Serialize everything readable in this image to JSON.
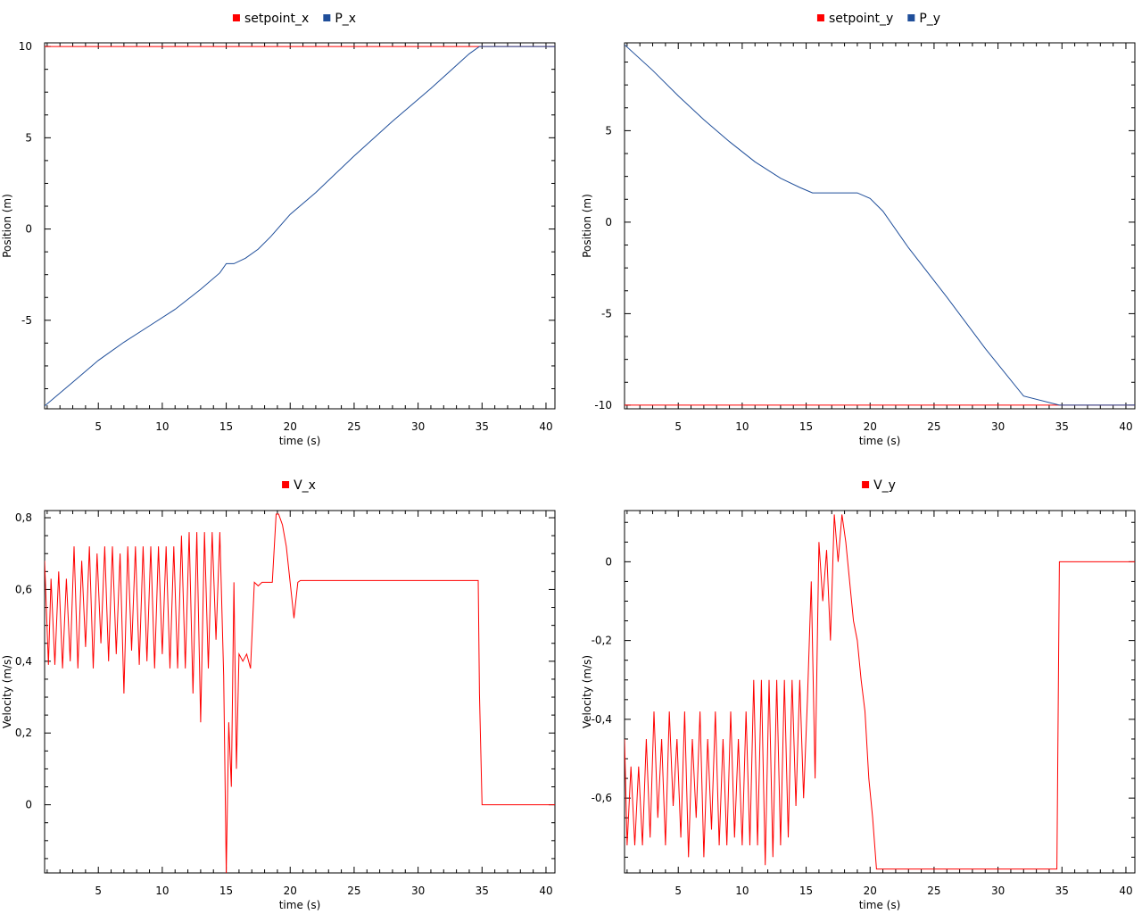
{
  "colors": {
    "red": "#ff0000",
    "blue": "#1f4e9a",
    "axis": "#000000"
  },
  "chart_data": [
    {
      "type": "line",
      "xlabel": "time (s)",
      "ylabel": "Position (m)",
      "xlim": [
        0.8,
        40.7
      ],
      "ylim": [
        -9.85,
        10.2
      ],
      "xticks": [
        5,
        10,
        15,
        20,
        25,
        30,
        35,
        40
      ],
      "yticks": [
        10,
        5,
        0,
        -5
      ],
      "ytick_labels": [
        "10",
        "5",
        "0",
        "-5"
      ],
      "grid": false,
      "legend": "top-center",
      "series": [
        {
          "name": "setpoint_x",
          "color": "#ff0000",
          "x": [
            0.8,
            40.7
          ],
          "y": [
            10,
            10
          ]
        },
        {
          "name": "P_x",
          "color": "#1f4e9a",
          "x": [
            0.8,
            3,
            5,
            7,
            9,
            11,
            13,
            14.5,
            15,
            15.6,
            16.5,
            17.5,
            18.5,
            20,
            22,
            25,
            28,
            31,
            34,
            34.8,
            40.7
          ],
          "y": [
            -9.7,
            -8.4,
            -7.2,
            -6.2,
            -5.3,
            -4.4,
            -3.3,
            -2.4,
            -1.9,
            -1.9,
            -1.6,
            -1.1,
            -0.4,
            0.8,
            2.0,
            4.0,
            5.9,
            7.7,
            9.6,
            10,
            10
          ]
        }
      ]
    },
    {
      "type": "line",
      "xlabel": "time (s)",
      "ylabel": "Position (m)",
      "xlim": [
        0.8,
        40.7
      ],
      "ylim": [
        -10.2,
        9.8
      ],
      "xticks": [
        5,
        10,
        15,
        20,
        25,
        30,
        35,
        40
      ],
      "yticks": [
        5,
        0,
        -5,
        -10
      ],
      "ytick_labels": [
        "5",
        "0",
        "-5",
        "-10"
      ],
      "grid": false,
      "legend": "top-center",
      "series": [
        {
          "name": "setpoint_y",
          "color": "#ff0000",
          "x": [
            0.8,
            40.7
          ],
          "y": [
            -10,
            -10
          ]
        },
        {
          "name": "P_y",
          "color": "#1f4e9a",
          "x": [
            0.8,
            3,
            5,
            7,
            9,
            11,
            13,
            14.5,
            15.5,
            16.5,
            18,
            19,
            20,
            21,
            23,
            26,
            29,
            32,
            34.8,
            40.7
          ],
          "y": [
            9.7,
            8.3,
            6.9,
            5.6,
            4.4,
            3.3,
            2.4,
            1.9,
            1.6,
            1.6,
            1.6,
            1.6,
            1.3,
            0.6,
            -1.4,
            -4.1,
            -6.9,
            -9.5,
            -10,
            -10
          ]
        }
      ]
    },
    {
      "type": "line",
      "xlabel": "time (s)",
      "ylabel": "Velocity (m/s)",
      "xlim": [
        0.8,
        40.7
      ],
      "ylim": [
        -0.19,
        0.82
      ],
      "xticks": [
        5,
        10,
        15,
        20,
        25,
        30,
        35,
        40
      ],
      "yticks": [
        0.8,
        0.6,
        0.4,
        0.2,
        0
      ],
      "ytick_labels": [
        "0,8",
        "0,6",
        "0,4",
        "0,2",
        "0"
      ],
      "grid": false,
      "legend": "top-center",
      "series": [
        {
          "name": "V_x",
          "color": "#ff0000",
          "x": [
            0.8,
            1.1,
            1.3,
            1.6,
            1.9,
            2.2,
            2.5,
            2.8,
            3.1,
            3.4,
            3.7,
            4.0,
            4.3,
            4.6,
            4.9,
            5.2,
            5.5,
            5.8,
            6.1,
            6.4,
            6.7,
            7.0,
            7.3,
            7.6,
            7.9,
            8.2,
            8.5,
            8.8,
            9.1,
            9.4,
            9.7,
            10.0,
            10.3,
            10.6,
            10.9,
            11.2,
            11.5,
            11.8,
            12.1,
            12.4,
            12.7,
            13.0,
            13.3,
            13.6,
            13.9,
            14.2,
            14.5,
            14.8,
            15.0,
            15.2,
            15.4,
            15.6,
            15.8,
            16.0,
            16.3,
            16.6,
            16.9,
            17.2,
            17.5,
            17.8,
            18.2,
            18.6,
            18.9,
            19.1,
            19.4,
            19.7,
            20.0,
            20.3,
            20.6,
            20.8,
            34.7,
            34.8,
            35.0,
            40.7
          ],
          "y": [
            0.68,
            0.39,
            0.63,
            0.39,
            0.65,
            0.38,
            0.63,
            0.4,
            0.72,
            0.38,
            0.68,
            0.44,
            0.72,
            0.38,
            0.7,
            0.45,
            0.72,
            0.4,
            0.72,
            0.42,
            0.7,
            0.31,
            0.72,
            0.43,
            0.72,
            0.39,
            0.72,
            0.4,
            0.72,
            0.38,
            0.72,
            0.42,
            0.72,
            0.38,
            0.72,
            0.38,
            0.75,
            0.38,
            0.76,
            0.31,
            0.76,
            0.23,
            0.76,
            0.38,
            0.76,
            0.46,
            0.76,
            0.36,
            -0.19,
            0.23,
            0.05,
            0.62,
            0.1,
            0.42,
            0.4,
            0.42,
            0.38,
            0.62,
            0.61,
            0.62,
            0.62,
            0.62,
            0.81,
            0.81,
            0.78,
            0.72,
            0.62,
            0.52,
            0.62,
            0.625,
            0.625,
            0.31,
            0.0,
            0.0
          ]
        }
      ]
    },
    {
      "type": "line",
      "xlabel": "time (s)",
      "ylabel": "Velocity (m/s)",
      "xlim": [
        0.8,
        40.7
      ],
      "ylim": [
        -0.79,
        0.13
      ],
      "xticks": [
        5,
        10,
        15,
        20,
        25,
        30,
        35,
        40
      ],
      "yticks": [
        0,
        -0.2,
        -0.4,
        -0.6
      ],
      "ytick_labels": [
        "0",
        "-0,2",
        "-0,4",
        "-0,6"
      ],
      "grid": false,
      "legend": "top-center",
      "series": [
        {
          "name": "V_y",
          "color": "#ff0000",
          "x": [
            0.8,
            1.0,
            1.3,
            1.6,
            1.9,
            2.2,
            2.5,
            2.8,
            3.1,
            3.4,
            3.7,
            4.0,
            4.3,
            4.6,
            4.9,
            5.2,
            5.5,
            5.8,
            6.1,
            6.4,
            6.7,
            7.0,
            7.3,
            7.6,
            7.9,
            8.2,
            8.5,
            8.8,
            9.1,
            9.4,
            9.7,
            10.0,
            10.3,
            10.6,
            10.9,
            11.2,
            11.5,
            11.8,
            12.1,
            12.4,
            12.7,
            13.0,
            13.3,
            13.6,
            13.9,
            14.2,
            14.5,
            14.8,
            15.1,
            15.4,
            15.7,
            16.0,
            16.3,
            16.6,
            16.9,
            17.2,
            17.5,
            17.8,
            18.1,
            18.4,
            18.7,
            19.0,
            19.3,
            19.6,
            19.9,
            20.2,
            20.5,
            20.8,
            34.6,
            34.8,
            40.7
          ],
          "y": [
            -0.45,
            -0.72,
            -0.52,
            -0.72,
            -0.52,
            -0.72,
            -0.45,
            -0.7,
            -0.38,
            -0.65,
            -0.45,
            -0.72,
            -0.38,
            -0.62,
            -0.45,
            -0.7,
            -0.38,
            -0.75,
            -0.45,
            -0.65,
            -0.38,
            -0.75,
            -0.45,
            -0.68,
            -0.38,
            -0.72,
            -0.45,
            -0.72,
            -0.38,
            -0.7,
            -0.45,
            -0.72,
            -0.38,
            -0.72,
            -0.3,
            -0.72,
            -0.3,
            -0.77,
            -0.3,
            -0.75,
            -0.3,
            -0.72,
            -0.3,
            -0.7,
            -0.3,
            -0.62,
            -0.3,
            -0.6,
            -0.35,
            -0.05,
            -0.55,
            0.05,
            -0.1,
            0.03,
            -0.2,
            0.12,
            0.0,
            0.12,
            0.05,
            -0.05,
            -0.15,
            -0.2,
            -0.3,
            -0.38,
            -0.55,
            -0.65,
            -0.78,
            -0.78,
            -0.78,
            0.0,
            0.0
          ]
        }
      ]
    }
  ]
}
